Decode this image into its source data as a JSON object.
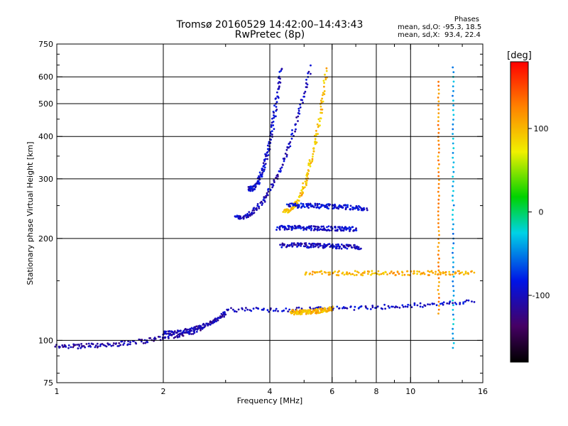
{
  "header": {
    "title": "Tromsø 20160529 14:42:00–14:43:43",
    "subtitle": "RwPretec (8p)"
  },
  "phase_stats": {
    "heading": "Phases",
    "o_line": "mean, sd,O: -95.3, 18.5",
    "x_line": "mean, sd,X:  93.4, 22.4"
  },
  "colorbar": {
    "unit_label": "[deg]",
    "tick_labels": [
      "100",
      "0",
      "-100"
    ],
    "tick_values": [
      100,
      0,
      -100
    ],
    "range": [
      -180,
      180
    ]
  },
  "chart_data": {
    "type": "scatter",
    "title": "Tromsø 20160529 14:42:00–14:43:43",
    "subtitle": "RwPretec (8p)",
    "xlabel": "Frequency [MHz]",
    "ylabel": "Stationary phase Virtual Height [km]",
    "x_scale": "log",
    "y_scale": "log",
    "xlim": [
      1,
      16
    ],
    "ylim": [
      75,
      750
    ],
    "x_ticks": [
      1,
      2,
      4,
      6,
      8,
      10,
      16
    ],
    "y_ticks": [
      75,
      100,
      200,
      300,
      400,
      500,
      600,
      750
    ],
    "x_minor_ticks": [
      3,
      5,
      7,
      9,
      12,
      14
    ],
    "y_minor_ticks": [
      80,
      90,
      150,
      250,
      350,
      450,
      550,
      650,
      700
    ],
    "x_gridlines": [
      2,
      4,
      6,
      8,
      10
    ],
    "y_gridlines": [
      100,
      200,
      300,
      400,
      500,
      600
    ],
    "color_scale": {
      "variable": "phase",
      "unit": "deg",
      "range": [
        -180,
        180
      ],
      "colormap": "rainbow (black → purple → blue → cyan → green → yellow → orange → red)"
    },
    "traces": [
      {
        "trace": "low-altitude E-layer echo",
        "f_min": 1.0,
        "f_max": 2.6,
        "height_start": 96,
        "height_end": 108,
        "phase": -110
      },
      {
        "trace": "E-layer echo near 110–120 km",
        "f_min": 2.0,
        "f_max": 3.0,
        "height_start": 105,
        "height_end": 120,
        "phase": -105
      },
      {
        "trace": "main F O-mode trace",
        "f_min": 3.2,
        "f_max": 5.2,
        "height_start": 230,
        "height_end": 640,
        "phase": -100
      },
      {
        "trace": "multiple-hop F echo",
        "f_min": 3.5,
        "f_max": 4.3,
        "height_start": 280,
        "height_end": 640,
        "phase": -95
      },
      {
        "trace": "F X-mode trace",
        "f_min": 4.4,
        "f_max": 5.8,
        "height_start": 240,
        "height_end": 630,
        "phase": 95
      },
      {
        "trace": "sporadic layer band near 120 km",
        "f_min": 3.0,
        "f_max": 15.0,
        "height_start": 123,
        "height_end": 130,
        "phase": -95
      },
      {
        "trace": "X-mode band near 120 km",
        "f_min": 4.6,
        "f_max": 6.0,
        "height_start": 121,
        "height_end": 124,
        "phase": 100
      },
      {
        "trace": "band near 160 km",
        "f_min": 5.0,
        "f_max": 15.0,
        "height_start": 158,
        "height_end": 158,
        "phase": 105
      },
      {
        "trace": "band near 190 km",
        "f_min": 4.3,
        "f_max": 7.2,
        "height_start": 191,
        "height_end": 188,
        "phase": -100
      },
      {
        "trace": "band near 215 km",
        "f_min": 4.2,
        "f_max": 7.0,
        "height_start": 215,
        "height_end": 213,
        "phase": -95
      },
      {
        "trace": "band near 250 km",
        "f_min": 4.5,
        "f_max": 7.5,
        "height_start": 250,
        "height_end": 245,
        "phase": -90
      },
      {
        "trace": "vertical streak at 12 MHz",
        "f_min": 12.0,
        "f_max": 12.0,
        "height_start": 120,
        "height_end": 580,
        "phase": 120
      },
      {
        "trace": "vertical streak at 13.2 MHz",
        "f_min": 13.2,
        "f_max": 13.2,
        "height_start": 95,
        "height_end": 640,
        "phase": -40
      }
    ]
  }
}
